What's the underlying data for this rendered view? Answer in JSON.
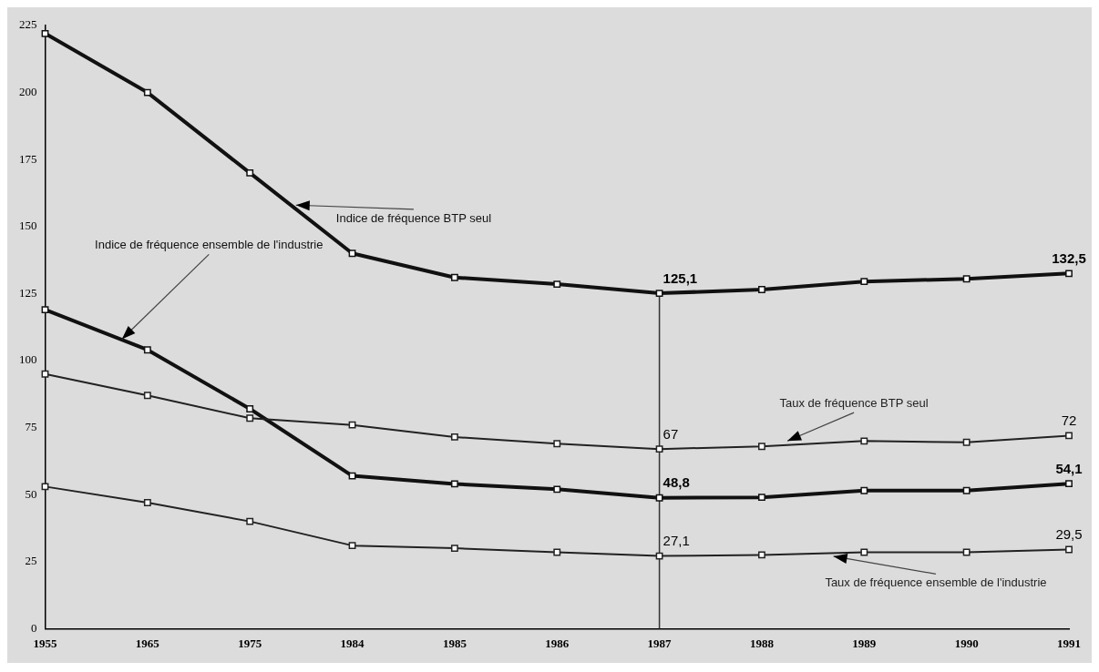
{
  "chart_data": {
    "type": "line",
    "categories": [
      "1955",
      "1965",
      "1975",
      "1984",
      "1985",
      "1986",
      "1987",
      "1988",
      "1989",
      "1990",
      "1991"
    ],
    "ylim": [
      0,
      225
    ],
    "yticks": [
      0,
      25,
      50,
      75,
      100,
      125,
      150,
      175,
      200,
      225
    ],
    "grid": false,
    "legend": false,
    "marker": "square",
    "line_style": "solid",
    "series": [
      {
        "name": "Indice de fréquence BTP seul",
        "color": "#111111",
        "values": [
          222,
          200,
          170,
          140,
          131,
          128.5,
          125.1,
          126.5,
          129.5,
          130.5,
          132.5
        ],
        "value_labels": [
          null,
          null,
          null,
          null,
          null,
          null,
          "125,1",
          null,
          null,
          null,
          "132,5"
        ]
      },
      {
        "name": "Taux de fréquence BTP seul",
        "color": "#222222",
        "values": [
          95,
          87,
          78.5,
          76,
          71.5,
          69,
          67,
          68,
          70,
          69.5,
          72
        ],
        "value_labels": [
          null,
          null,
          null,
          null,
          null,
          null,
          "67",
          null,
          null,
          null,
          "72"
        ]
      },
      {
        "name": "Indice de fréquence ensemble de l'industrie",
        "color": "#111111",
        "values": [
          119,
          104,
          82,
          57,
          54,
          52,
          48.8,
          49,
          51.5,
          51.5,
          54.1
        ],
        "value_labels": [
          null,
          null,
          null,
          null,
          null,
          null,
          "48,8",
          null,
          null,
          null,
          "54,1"
        ]
      },
      {
        "name": "Taux de fréquence ensemble de l'industrie",
        "color": "#222222",
        "values": [
          53,
          47,
          40,
          31,
          30,
          28.5,
          27.1,
          27.5,
          28.5,
          28.5,
          29.5
        ],
        "value_labels": [
          null,
          null,
          null,
          null,
          null,
          null,
          "27,1",
          null,
          null,
          null,
          "29,5"
        ]
      }
    ],
    "ref_lines": [
      {
        "axis": "x",
        "value": "1987",
        "color": "#333333",
        "line_style": "solid"
      }
    ]
  }
}
